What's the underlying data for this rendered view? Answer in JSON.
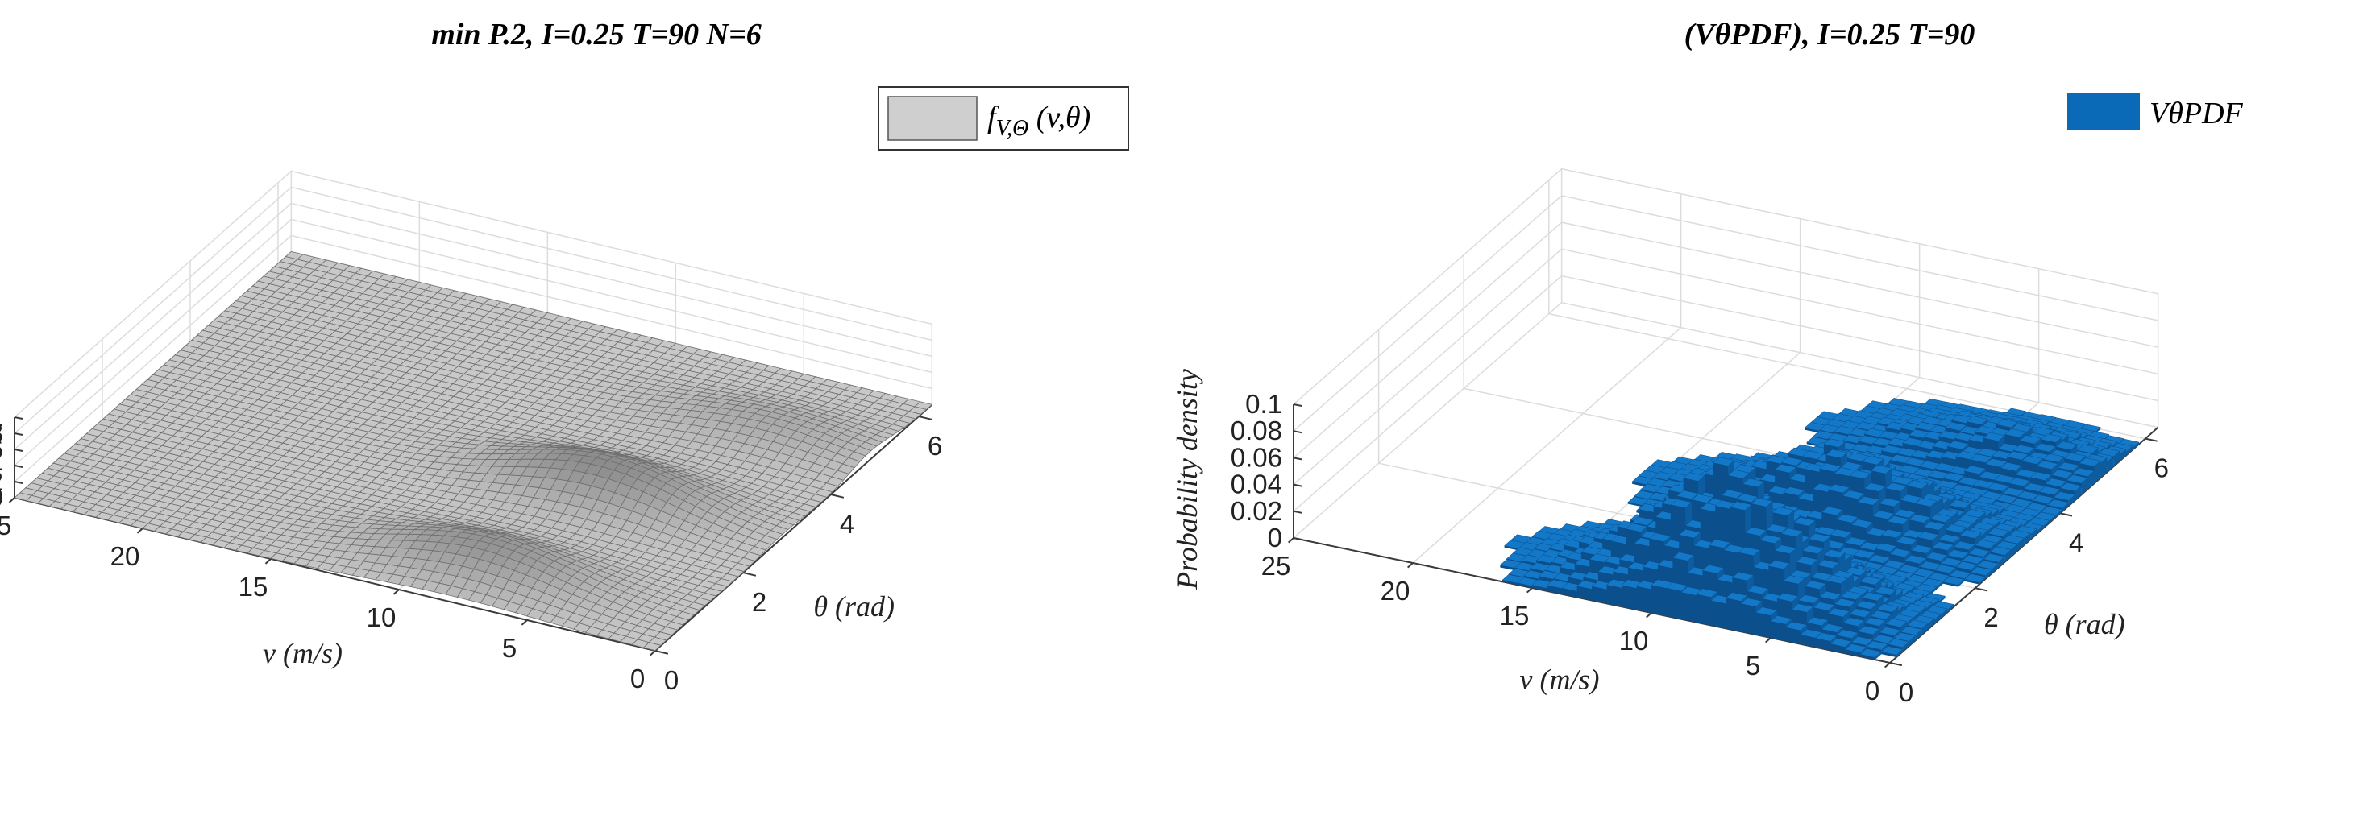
{
  "chart_data": [
    {
      "type": "surface",
      "title": "min P.2, I=0.25 T=90 N=6",
      "xlabel": "v (m/s)",
      "ylabel": "θ (rad)",
      "zlabel": "Probability density",
      "legend": "f_{V,Θ} (v,θ)",
      "legend_parts": {
        "f": "f",
        "sub": "V,Θ",
        "args": " (v,θ)"
      },
      "legend_position": "top-right",
      "xlim": [
        0,
        25
      ],
      "ylim": [
        0,
        6.3
      ],
      "zlim": [
        0,
        0.1
      ],
      "v_ticks": [
        "0",
        "5",
        "10",
        "15",
        "20",
        "25"
      ],
      "theta_ticks": [
        "0",
        "2",
        "4",
        "6"
      ],
      "z_ticks": [
        "0",
        "0.02",
        "0.04",
        "0.06",
        "0.08",
        "0.1"
      ],
      "color": "#b4b4b4",
      "edge_color": "#6e6e6e",
      "peaks": [
        {
          "v": 8,
          "theta": 0.8,
          "height": 0.038
        },
        {
          "v": 7,
          "theta": 2.9,
          "height": 0.044
        },
        {
          "v": 4,
          "theta": 4.9,
          "height": 0.022
        }
      ]
    },
    {
      "type": "bar3d",
      "title": "(VθPDF), I=0.25 T=90",
      "xlabel": "v (m/s)",
      "ylabel": "θ (rad)",
      "zlabel": "Probability density",
      "legend": "VθPDF",
      "legend_position": "top-right",
      "xlim": [
        0,
        25
      ],
      "ylim": [
        0,
        6.3
      ],
      "zlim": [
        0,
        0.1
      ],
      "v_ticks": [
        "0",
        "5",
        "10",
        "15",
        "20",
        "25"
      ],
      "theta_ticks": [
        "0",
        "2",
        "4",
        "6"
      ],
      "z_ticks": [
        "0",
        "0.02",
        "0.04",
        "0.06",
        "0.08",
        "0.1"
      ],
      "color": "#0a6ab8",
      "edge_color": "#0a4c86",
      "peaks": [
        {
          "v": 8,
          "theta": 0.8,
          "height": 0.083
        },
        {
          "v": 7,
          "theta": 2.9,
          "height": 0.049
        },
        {
          "v": 4,
          "theta": 4.9,
          "height": 0.021
        }
      ]
    }
  ]
}
